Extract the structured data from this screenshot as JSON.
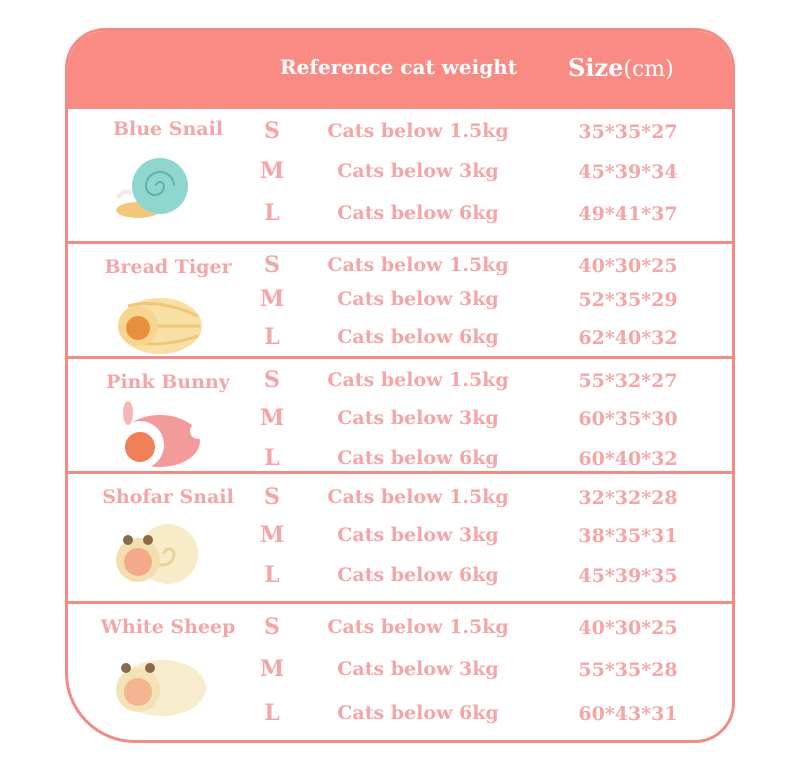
{
  "header": {
    "weight_label": "Reference cat weight",
    "size_label": "Size",
    "size_unit": "(cm)"
  },
  "colors": {
    "header": "#fa8a84",
    "border": "#f28b85",
    "text": "#f4a6a6"
  },
  "products": [
    {
      "name": "Blue Snail",
      "icon": "blue-snail-bed",
      "rows": [
        {
          "size": "S",
          "weight": "Cats below 1.5kg",
          "dims": "35*35*27"
        },
        {
          "size": "M",
          "weight": "Cats below 3kg",
          "dims": "45*39*34"
        },
        {
          "size": "L",
          "weight": "Cats below 6kg",
          "dims": "49*41*37"
        }
      ]
    },
    {
      "name": "Bread Tiger",
      "icon": "bread-tiger-bed",
      "rows": [
        {
          "size": "S",
          "weight": "Cats below 1.5kg",
          "dims": "40*30*25"
        },
        {
          "size": "M",
          "weight": "Cats below 3kg",
          "dims": "52*35*29"
        },
        {
          "size": "L",
          "weight": "Cats below 6kg",
          "dims": "62*40*32"
        }
      ]
    },
    {
      "name": "Pink Bunny",
      "icon": "pink-bunny-bed",
      "rows": [
        {
          "size": "S",
          "weight": "Cats below 1.5kg",
          "dims": "55*32*27"
        },
        {
          "size": "M",
          "weight": "Cats below 3kg",
          "dims": "60*35*30"
        },
        {
          "size": "L",
          "weight": "Cats below 6kg",
          "dims": "60*40*32"
        }
      ]
    },
    {
      "name": "Shofar Snail",
      "icon": "shofar-snail-bed",
      "rows": [
        {
          "size": "S",
          "weight": "Cats below 1.5kg",
          "dims": "32*32*28"
        },
        {
          "size": "M",
          "weight": "Cats below 3kg",
          "dims": "38*35*31"
        },
        {
          "size": "L",
          "weight": "Cats below 6kg",
          "dims": "45*39*35"
        }
      ]
    },
    {
      "name": "White Sheep",
      "icon": "white-sheep-bed",
      "rows": [
        {
          "size": "S",
          "weight": "Cats below 1.5kg",
          "dims": "40*30*25"
        },
        {
          "size": "M",
          "weight": "Cats below 3kg",
          "dims": "55*35*28"
        },
        {
          "size": "L",
          "weight": "Cats below 6kg",
          "dims": "60*43*31"
        }
      ]
    }
  ]
}
